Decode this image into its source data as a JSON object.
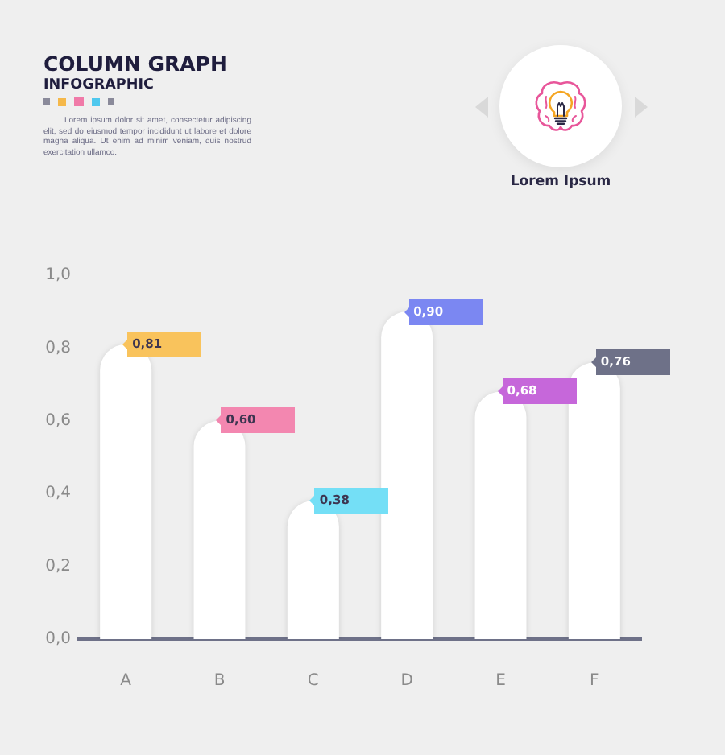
{
  "chart_data": {
    "type": "bar",
    "title": "COLUMN GRAPH",
    "subtitle": "INFOGRAPHIC",
    "annotations": [
      "Lorem ipsum dolor sit amet, consectetur adipiscing elit, sed do eiusmod tempor incididunt ut labore et dolore magna aliqua. Ut enim ad minim veniam, quis nostrud exercitation ullamco.",
      "Lorem Ipsum"
    ],
    "categories": [
      "A",
      "B",
      "C",
      "D",
      "E",
      "F"
    ],
    "values": [
      0.81,
      0.6,
      0.38,
      0.9,
      0.68,
      0.76
    ],
    "value_labels": [
      "0,81",
      "0,60",
      "0,38",
      "0,90",
      "0,68",
      "0,76"
    ],
    "color": "#ffffff",
    "ylim": [
      0,
      1.0
    ],
    "yticks": [
      {
        "value": 0,
        "label": "0,0"
      },
      {
        "value": 0.2,
        "label": "0,2"
      },
      {
        "value": 0.4,
        "label": "0,4"
      },
      {
        "value": 0.6,
        "label": "0,6"
      },
      {
        "value": 0.8,
        "label": "0,8"
      },
      {
        "value": 1.0,
        "label": "1,0"
      }
    ]
  }
}
